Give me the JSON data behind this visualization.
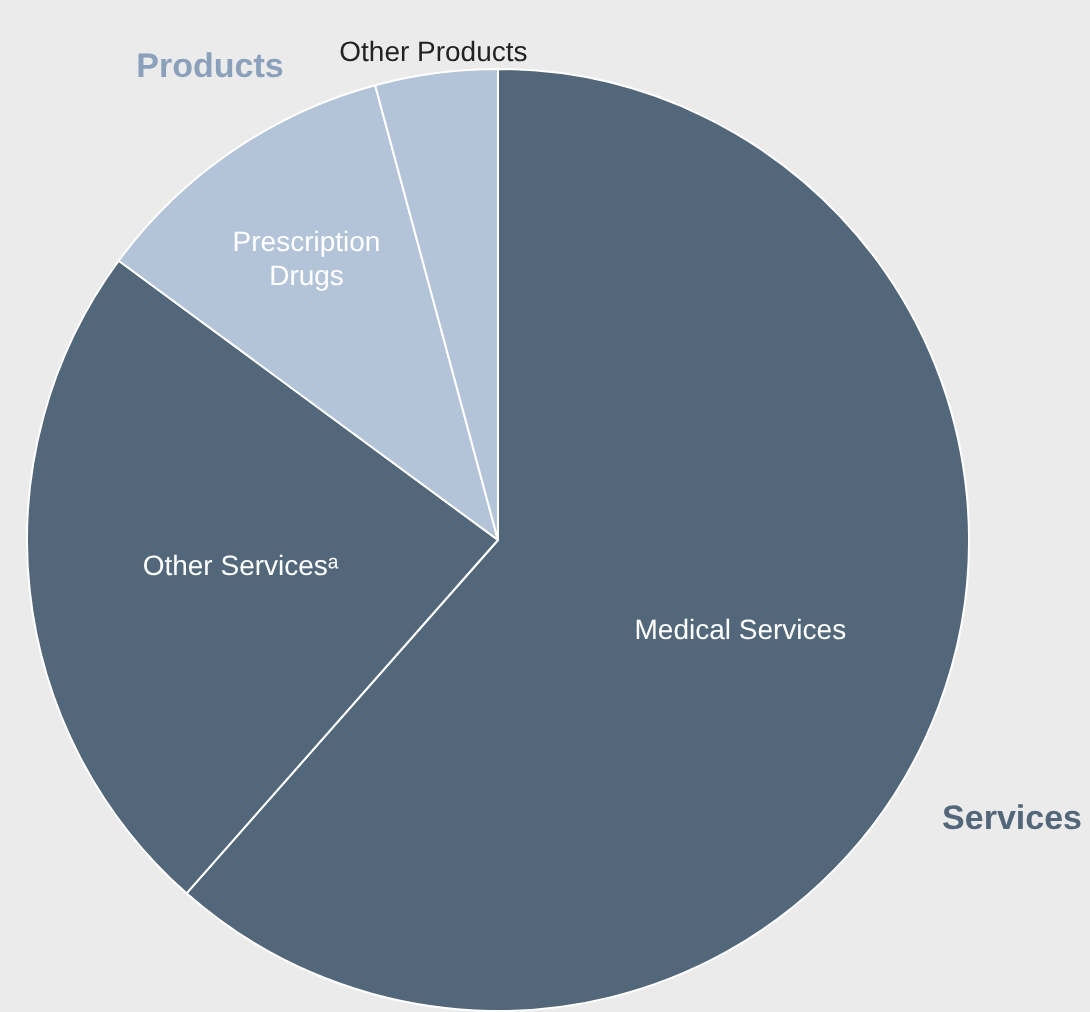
{
  "chart_data": {
    "type": "pie",
    "categories": [
      "Medical Services",
      "Other Servicesᵃ",
      "Prescription Drugs",
      "Other Products"
    ],
    "values": [
      61.5,
      23.6,
      10.7,
      4.2
    ],
    "colors": [
      "#53677a",
      "#53677a",
      "#b4c4d8",
      "#b4c4d8"
    ],
    "annotations": [
      "Products",
      "Services"
    ],
    "legend": false
  }
}
